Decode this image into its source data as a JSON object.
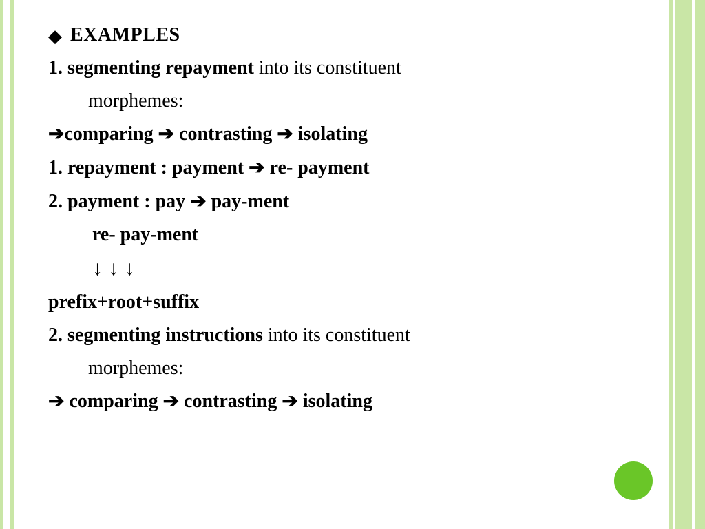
{
  "colors": {
    "border": "#c9e6a6",
    "circle": "#6ac628",
    "text": "#000000",
    "background": "#ffffff"
  },
  "glyphs": {
    "diamond": "◆",
    "arrowRight": "➔",
    "arrowDown": "↓"
  },
  "heading": "EXAMPLES",
  "lines": {
    "l1_bold": "1. segmenting repayment",
    "l1_rest": " into its constituent",
    "l1b": "morphemes:",
    "l2_a": "comparing  ",
    "l2_b": " contrasting  ",
    "l2_c": " isolating",
    "l3_a": "1. repayment",
    "l3_colon": "  :  ",
    "l3_b": "payment ",
    "l3_c": " re- payment",
    "l4_a": "2. payment",
    "l4_colon": "  :  ",
    "l4_b": "pay ",
    "l4_c": " pay-ment",
    "l5": "re- pay-ment",
    "l6": "↓        ↓        ↓",
    "l7": "prefix+root+suffix",
    "l8_bold": "2. segmenting instructions",
    "l8_rest": " into its constituent",
    "l8b": "morphemes:",
    "l9_a": " comparing  ",
    "l9_b": " contrasting  ",
    "l9_c": " isolating"
  }
}
